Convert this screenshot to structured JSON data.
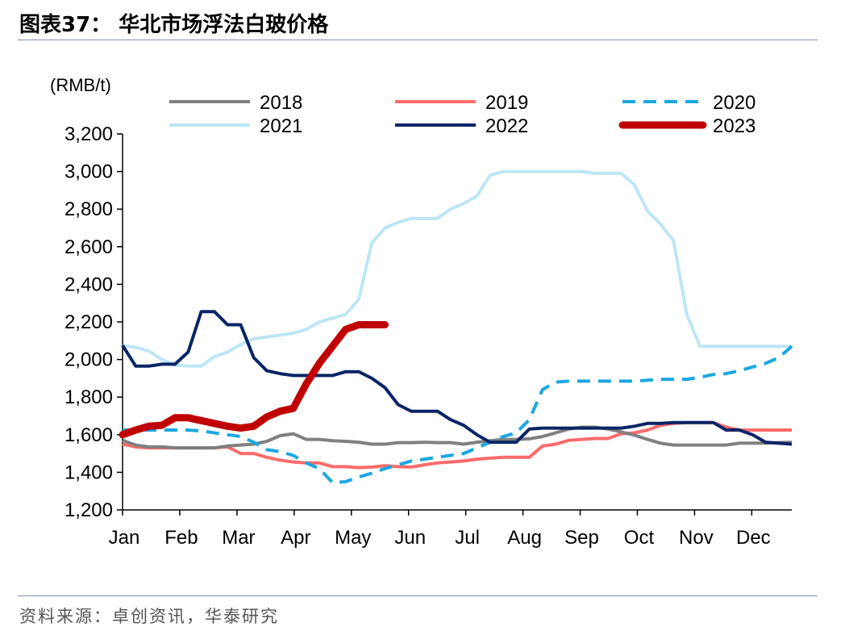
{
  "header": {
    "title": "图表37：  华北市场浮法白玻价格"
  },
  "footer": {
    "source": "资料来源：卓创资讯，华泰研究"
  },
  "colors": {
    "2018": "#808080",
    "2019": "#ff6b6b",
    "2020": "#1ba7e0",
    "2021": "#bde6f6",
    "2022": "#0a2566",
    "2023": "#c00000"
  },
  "chart_data": {
    "type": "line",
    "title": "华北市场浮法白玻价格",
    "ylabel": "(RMB/t)",
    "xlabel": "",
    "ylim": [
      1200,
      3200
    ],
    "yticks": [
      "1,200",
      "1,400",
      "1,600",
      "1,800",
      "2,000",
      "2,200",
      "2,400",
      "2,600",
      "2,800",
      "3,000",
      "3,200"
    ],
    "categories": [
      "Jan",
      "Feb",
      "Mar",
      "Apr",
      "May",
      "Jun",
      "Jul",
      "Aug",
      "Sep",
      "Oct",
      "Nov",
      "Dec"
    ],
    "x_unit": "week of year",
    "legend_position": "top",
    "series": [
      {
        "name": "2018",
        "style": "solid",
        "x": [
          1,
          2,
          3,
          4,
          5,
          6,
          7,
          8,
          9,
          10,
          11,
          12,
          13,
          14,
          15,
          16,
          17,
          18,
          19,
          20,
          21,
          22,
          23,
          24,
          25,
          26,
          27,
          28,
          29,
          30,
          31,
          32,
          33,
          34,
          35,
          36,
          37,
          38,
          39,
          40,
          41,
          42,
          43,
          44,
          45,
          46,
          47,
          48,
          49,
          50,
          51,
          52
        ],
        "values": [
          1570,
          1545,
          1535,
          1535,
          1530,
          1530,
          1530,
          1530,
          1540,
          1545,
          1550,
          1565,
          1595,
          1605,
          1575,
          1575,
          1568,
          1565,
          1560,
          1550,
          1550,
          1558,
          1558,
          1560,
          1558,
          1558,
          1550,
          1560,
          1568,
          1575,
          1575,
          1578,
          1590,
          1610,
          1630,
          1640,
          1640,
          1630,
          1615,
          1598,
          1575,
          1555,
          1545,
          1545,
          1545,
          1545,
          1545,
          1555,
          1555,
          1555,
          1558,
          1560
        ]
      },
      {
        "name": "2019",
        "style": "solid",
        "x": [
          1,
          2,
          3,
          4,
          5,
          6,
          7,
          8,
          9,
          10,
          11,
          12,
          13,
          14,
          15,
          16,
          17,
          18,
          19,
          20,
          21,
          22,
          23,
          24,
          25,
          26,
          27,
          28,
          29,
          30,
          31,
          32,
          33,
          34,
          35,
          36,
          37,
          38,
          39,
          40,
          41,
          42,
          43,
          44,
          45,
          46,
          47,
          48,
          49,
          50,
          51,
          52
        ],
        "values": [
          1550,
          1535,
          1530,
          1530,
          1530,
          1530,
          1530,
          1530,
          1535,
          1500,
          1500,
          1480,
          1465,
          1455,
          1450,
          1450,
          1430,
          1430,
          1425,
          1428,
          1435,
          1430,
          1428,
          1440,
          1450,
          1455,
          1460,
          1470,
          1475,
          1480,
          1480,
          1480,
          1540,
          1550,
          1570,
          1575,
          1580,
          1580,
          1605,
          1610,
          1625,
          1650,
          1660,
          1665,
          1665,
          1665,
          1640,
          1625,
          1625,
          1625,
          1625,
          1625
        ]
      },
      {
        "name": "2020",
        "style": "dashed",
        "x": [
          1,
          2,
          3,
          4,
          5,
          6,
          7,
          8,
          9,
          10,
          11,
          12,
          13,
          14,
          15,
          16,
          17,
          18,
          19,
          20,
          21,
          22,
          23,
          24,
          25,
          26,
          27,
          28,
          29,
          30,
          31,
          32,
          33,
          34,
          35,
          36,
          37,
          38,
          39,
          40,
          41,
          42,
          43,
          44,
          45,
          46,
          47,
          48,
          49,
          50,
          51,
          52
        ],
        "values": [
          1625,
          1625,
          1625,
          1625,
          1625,
          1625,
          1620,
          1610,
          1600,
          1590,
          1560,
          1520,
          1510,
          1490,
          1450,
          1420,
          1345,
          1350,
          1375,
          1395,
          1420,
          1440,
          1460,
          1470,
          1480,
          1490,
          1500,
          1530,
          1560,
          1590,
          1610,
          1680,
          1840,
          1880,
          1885,
          1885,
          1885,
          1885,
          1885,
          1885,
          1890,
          1895,
          1895,
          1895,
          1905,
          1920,
          1925,
          1940,
          1960,
          1980,
          2010,
          2070
        ]
      },
      {
        "name": "2021",
        "style": "solid",
        "x": [
          1,
          2,
          3,
          4,
          5,
          6,
          7,
          8,
          9,
          10,
          11,
          12,
          13,
          14,
          15,
          16,
          17,
          18,
          19,
          20,
          21,
          22,
          23,
          24,
          25,
          26,
          27,
          28,
          29,
          30,
          31,
          32,
          33,
          34,
          35,
          36,
          37,
          38,
          39,
          40,
          41,
          42,
          43,
          44,
          45,
          46,
          47,
          48,
          49,
          50,
          51,
          52
        ],
        "values": [
          2075,
          2065,
          2045,
          2000,
          1970,
          1965,
          1965,
          2015,
          2040,
          2080,
          2110,
          2120,
          2130,
          2140,
          2160,
          2200,
          2220,
          2240,
          2320,
          2620,
          2700,
          2730,
          2750,
          2750,
          2750,
          2800,
          2830,
          2870,
          2980,
          3000,
          3000,
          3000,
          3000,
          3000,
          3000,
          3000,
          2990,
          2990,
          2990,
          2930,
          2790,
          2720,
          2630,
          2240,
          2070,
          2070,
          2070,
          2070,
          2070,
          2070,
          2070,
          2070
        ]
      },
      {
        "name": "2022",
        "style": "solid",
        "x": [
          1,
          2,
          3,
          4,
          5,
          6,
          7,
          8,
          9,
          10,
          11,
          12,
          13,
          14,
          15,
          16,
          17,
          18,
          19,
          20,
          21,
          22,
          23,
          24,
          25,
          26,
          27,
          28,
          29,
          30,
          31,
          32,
          33,
          34,
          35,
          36,
          37,
          38,
          39,
          40,
          41,
          42,
          43,
          44,
          45,
          46,
          47,
          48,
          49,
          50,
          51,
          52
        ],
        "values": [
          2075,
          1965,
          1965,
          1975,
          1975,
          2040,
          2255,
          2255,
          2185,
          2185,
          2010,
          1940,
          1925,
          1915,
          1915,
          1915,
          1915,
          1935,
          1935,
          1900,
          1850,
          1760,
          1725,
          1725,
          1725,
          1680,
          1650,
          1600,
          1560,
          1560,
          1560,
          1630,
          1635,
          1635,
          1635,
          1635,
          1635,
          1635,
          1635,
          1645,
          1660,
          1660,
          1665,
          1665,
          1665,
          1665,
          1625,
          1625,
          1600,
          1560,
          1555,
          1550
        ]
      },
      {
        "name": "2023",
        "style": "bold",
        "x": [
          1,
          2,
          3,
          4,
          5,
          6,
          7,
          8,
          9,
          10,
          11,
          12,
          13,
          14,
          15,
          16,
          17,
          18,
          19,
          20,
          21
        ],
        "values": [
          1600,
          1625,
          1645,
          1650,
          1690,
          1690,
          1675,
          1660,
          1645,
          1635,
          1645,
          1695,
          1725,
          1740,
          1870,
          1980,
          2070,
          2160,
          2185,
          2185,
          2185
        ]
      }
    ]
  }
}
